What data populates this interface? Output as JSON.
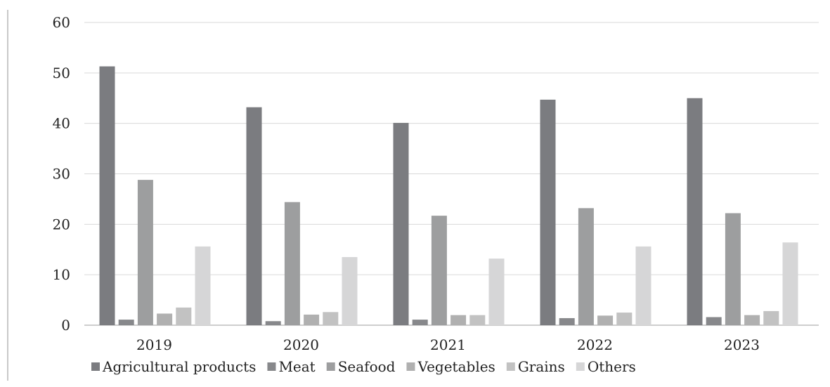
{
  "chart_data": {
    "type": "bar",
    "title": "",
    "xlabel": "",
    "ylabel": "",
    "ylim": [
      0,
      60
    ],
    "yticks": [
      0,
      10,
      20,
      30,
      40,
      50,
      60
    ],
    "grid": true,
    "legend_position": "bottom",
    "categories": [
      "2019",
      "2020",
      "2021",
      "2022",
      "2023"
    ],
    "series": [
      {
        "name": "Agricultural products",
        "color": "#7b7c80",
        "values": [
          51.3,
          43.2,
          40.1,
          44.7,
          45.0
        ]
      },
      {
        "name": "Meat",
        "color": "#87888b",
        "values": [
          1.1,
          0.8,
          1.1,
          1.4,
          1.6
        ]
      },
      {
        "name": "Seafood",
        "color": "#9d9e9f",
        "values": [
          28.8,
          24.4,
          21.7,
          23.2,
          22.2
        ]
      },
      {
        "name": "Vegetables",
        "color": "#b0b0b0",
        "values": [
          2.3,
          2.1,
          2.0,
          1.9,
          2.0
        ]
      },
      {
        "name": "Grains",
        "color": "#c2c2c2",
        "values": [
          3.5,
          2.6,
          2.0,
          2.5,
          2.8
        ]
      },
      {
        "name": "Others",
        "color": "#d6d6d7",
        "values": [
          15.6,
          13.5,
          13.2,
          15.6,
          16.4
        ]
      }
    ]
  }
}
